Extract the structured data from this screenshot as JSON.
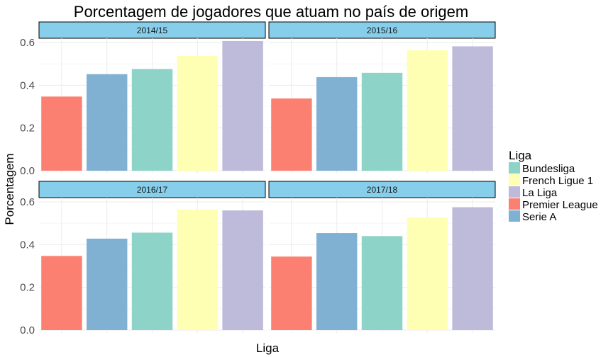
{
  "chart_data": {
    "type": "bar",
    "title": "Porcentagem de jogadores que atuam no país de origem",
    "xlabel": "Liga",
    "ylabel": "Porcentagem",
    "ylim": [
      0,
      0.62
    ],
    "yticks": [
      "0.0",
      "0.2",
      "0.4",
      "0.6"
    ],
    "grid": true,
    "legend_position": "right",
    "legend": {
      "title": "Liga",
      "entries": [
        {
          "label": "Bundesliga",
          "color": "#8DD3C7"
        },
        {
          "label": "French Ligue 1",
          "color": "#FFFFB3"
        },
        {
          "label": "La Liga",
          "color": "#BEBADA"
        },
        {
          "label": "Premier League",
          "color": "#FB8072"
        },
        {
          "label": "Serie A",
          "color": "#80B1D3"
        }
      ]
    },
    "categories": [
      "Premier League",
      "Serie A",
      "Bundesliga",
      "French Ligue 1",
      "La Liga"
    ],
    "colors": [
      "#FB8072",
      "#80B1D3",
      "#8DD3C7",
      "#FFFFB3",
      "#BEBADA"
    ],
    "facets": [
      {
        "label": "2014/15",
        "values": [
          0.347,
          0.452,
          0.476,
          0.537,
          0.607
        ]
      },
      {
        "label": "2015/16",
        "values": [
          0.338,
          0.438,
          0.458,
          0.564,
          0.582
        ]
      },
      {
        "label": "2016/17",
        "values": [
          0.347,
          0.428,
          0.456,
          0.564,
          0.56
        ]
      },
      {
        "label": "2017/18",
        "values": [
          0.344,
          0.454,
          0.44,
          0.527,
          0.575
        ]
      }
    ],
    "strip_color": "#87CEEB"
  }
}
